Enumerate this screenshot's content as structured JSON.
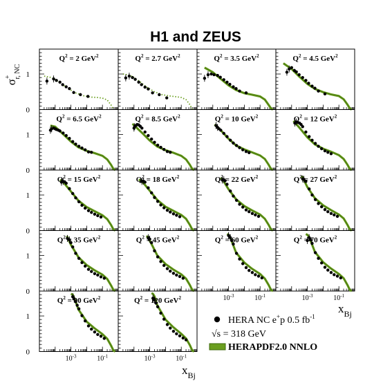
{
  "chart_data": {
    "type": "scatter",
    "title": "H1 and ZEUS",
    "ylabel_main": "σ",
    "ylabel_super": "+",
    "ylabel_sub": "r, NC",
    "xlabel_main": "x",
    "xlabel_sub": "Bj",
    "x_scale": "log",
    "xlim": [
      1e-05,
      1
    ],
    "ylim": [
      0,
      1.7
    ],
    "y_ticks": [
      "0",
      "1"
    ],
    "x_tick_labels": [
      {
        "value": 0.001,
        "base": "10",
        "exp": "-3"
      },
      {
        "value": 0.1,
        "base": "10",
        "exp": "-1"
      }
    ],
    "grid": false,
    "legend": {
      "placement": "bottom-right",
      "data_entry": {
        "main": "HERA NC e",
        "sup": "+",
        "rest": "p 0.5 fb",
        "sup2": "-1"
      },
      "sqrt_s": "√s = 318 GeV",
      "fit_entry": "HERAPDF2.0 NNLO"
    },
    "colors": {
      "fit_band": "#6a9e1f",
      "fit_edge": "#3f6b0c",
      "points": "#000000"
    },
    "panels": [
      {
        "q2": "2",
        "fit_x": [
          2e-05,
          6e-05,
          0.0002,
          0.0006,
          0.002,
          0.006,
          0.02,
          0.05,
          0.1,
          0.2,
          0.35,
          0.5
        ],
        "fit_y": [
          0.94,
          0.9,
          0.76,
          0.6,
          0.47,
          0.39,
          0.35,
          0.34,
          0.32,
          0.27,
          0.13,
          0.01
        ],
        "fit_dotted": true,
        "x": [
          3e-05,
          8e-05,
          0.00012,
          0.0002,
          0.0003,
          0.0005,
          0.0008,
          0.0015,
          0.004,
          0.012
        ],
        "y": [
          0.8,
          0.86,
          0.82,
          0.77,
          0.7,
          0.64,
          0.59,
          0.48,
          0.42,
          0.37
        ]
      },
      {
        "q2": "2.7",
        "fit_x": [
          2e-05,
          6e-05,
          0.0002,
          0.0006,
          0.002,
          0.006,
          0.02,
          0.05,
          0.1,
          0.2,
          0.35,
          0.5
        ],
        "fit_y": [
          1.0,
          0.96,
          0.81,
          0.64,
          0.5,
          0.42,
          0.38,
          0.36,
          0.34,
          0.28,
          0.14,
          0.01
        ],
        "fit_dotted": true,
        "x": [
          3e-05,
          5e-05,
          8e-05,
          0.00012,
          0.0002,
          0.0003,
          0.0005,
          0.0008,
          0.0015,
          0.004,
          0.012
        ],
        "y": [
          0.89,
          0.94,
          0.9,
          0.85,
          0.77,
          0.7,
          0.63,
          0.58,
          0.47,
          0.42,
          0.33
        ]
      },
      {
        "q2": "3.5",
        "fit_x": [
          3e-05,
          0.0001,
          0.0003,
          0.001,
          0.003,
          0.01,
          0.03,
          0.1,
          0.2,
          0.35,
          0.5,
          0.65
        ],
        "fit_y": [
          1.18,
          1.05,
          0.87,
          0.68,
          0.55,
          0.46,
          0.42,
          0.37,
          0.28,
          0.13,
          0.03,
          0.0
        ],
        "fit_dotted": false,
        "x": [
          3e-05,
          5e-05,
          8e-05,
          0.00012,
          0.0002,
          0.0003,
          0.0005,
          0.0008,
          0.0012,
          0.002,
          0.003,
          0.005,
          0.013
        ],
        "y": [
          0.88,
          0.98,
          1.0,
          0.98,
          0.96,
          0.91,
          0.84,
          0.77,
          0.71,
          0.64,
          0.59,
          0.52,
          0.47
        ]
      },
      {
        "q2": "4.5",
        "fit_x": [
          3e-05,
          0.0001,
          0.0003,
          0.001,
          0.003,
          0.01,
          0.03,
          0.1,
          0.2,
          0.35,
          0.5,
          0.65
        ],
        "fit_y": [
          1.3,
          1.14,
          0.93,
          0.72,
          0.58,
          0.49,
          0.43,
          0.38,
          0.29,
          0.14,
          0.03,
          0.0
        ],
        "fit_dotted": false,
        "x": [
          5e-05,
          7e-05,
          0.0001,
          0.00015,
          0.0002,
          0.0003,
          0.0005,
          0.0008,
          0.0012,
          0.002,
          0.003,
          0.005,
          0.013
        ],
        "y": [
          1.05,
          1.14,
          1.18,
          1.1,
          1.06,
          0.98,
          0.9,
          0.82,
          0.74,
          0.66,
          0.6,
          0.52,
          0.44
        ]
      },
      {
        "q2": "6.5",
        "fit_x": [
          5e-05,
          0.0001,
          0.0003,
          0.001,
          0.003,
          0.01,
          0.03,
          0.1,
          0.2,
          0.35,
          0.5,
          0.65
        ],
        "fit_y": [
          1.25,
          1.22,
          1.02,
          0.8,
          0.64,
          0.54,
          0.48,
          0.4,
          0.3,
          0.15,
          0.03,
          0.0
        ],
        "fit_dotted": false,
        "x": [
          5e-05,
          6e-05,
          8e-05,
          0.0001,
          0.00012,
          0.00016,
          0.0002,
          0.00032,
          0.0005,
          0.0008,
          0.0013,
          0.002,
          0.0032,
          0.005,
          0.008,
          0.013,
          0.02
        ],
        "y": [
          1.12,
          1.16,
          1.18,
          1.16,
          1.14,
          1.12,
          1.1,
          1.04,
          0.97,
          0.89,
          0.8,
          0.73,
          0.67,
          0.62,
          0.57,
          0.51,
          0.5
        ]
      },
      {
        "q2": "8.5",
        "fit_x": [
          8e-05,
          0.0001,
          0.0003,
          0.001,
          0.003,
          0.01,
          0.03,
          0.1,
          0.2,
          0.35,
          0.5,
          0.65
        ],
        "fit_y": [
          1.3,
          1.26,
          1.06,
          0.83,
          0.66,
          0.56,
          0.49,
          0.4,
          0.3,
          0.15,
          0.03,
          0.0
        ],
        "fit_dotted": false,
        "x": [
          0.0001,
          0.00011,
          0.00013,
          0.00016,
          0.0002,
          0.00025,
          0.00032,
          0.0005,
          0.0008,
          0.0013,
          0.002,
          0.0032,
          0.005,
          0.008,
          0.013,
          0.02
        ],
        "y": [
          1.18,
          1.22,
          1.25,
          1.28,
          1.27,
          1.23,
          1.18,
          1.07,
          0.97,
          0.87,
          0.78,
          0.7,
          0.64,
          0.58,
          0.52,
          0.5
        ]
      },
      {
        "q2": "10",
        "fit_x": [
          0.00013,
          0.0003,
          0.001,
          0.003,
          0.01,
          0.03,
          0.1,
          0.2,
          0.35,
          0.5,
          0.65
        ],
        "fit_y": [
          1.28,
          1.13,
          0.88,
          0.69,
          0.58,
          0.5,
          0.41,
          0.31,
          0.15,
          0.03,
          0.0
        ],
        "fit_dotted": false,
        "x": [
          0.00016,
          0.0002,
          0.00025,
          0.00032,
          0.0005,
          0.0008,
          0.0013,
          0.002,
          0.0032,
          0.005,
          0.008,
          0.013,
          0.02
        ],
        "y": [
          1.25,
          1.2,
          1.16,
          1.12,
          1.03,
          0.94,
          0.84,
          0.76,
          0.69,
          0.63,
          0.57,
          0.52,
          0.49
        ]
      },
      {
        "q2": "12",
        "fit_x": [
          0.00013,
          0.0003,
          0.001,
          0.003,
          0.01,
          0.03,
          0.1,
          0.2,
          0.35,
          0.5,
          0.65
        ],
        "fit_y": [
          1.38,
          1.2,
          0.92,
          0.72,
          0.6,
          0.52,
          0.42,
          0.31,
          0.15,
          0.03,
          0.0
        ],
        "fit_dotted": false,
        "x": [
          0.00016,
          0.0002,
          0.00025,
          0.00032,
          0.0004,
          0.0005,
          0.0008,
          0.0013,
          0.002,
          0.0032,
          0.005,
          0.008,
          0.013,
          0.02,
          0.032
        ],
        "y": [
          1.32,
          1.35,
          1.34,
          1.32,
          1.28,
          1.22,
          1.07,
          0.94,
          0.84,
          0.75,
          0.67,
          0.6,
          0.54,
          0.5,
          0.46
        ]
      },
      {
        "q2": "15",
        "fit_x": [
          0.0002,
          0.0003,
          0.001,
          0.003,
          0.01,
          0.03,
          0.1,
          0.2,
          0.35,
          0.5,
          0.65
        ],
        "fit_y": [
          1.42,
          1.38,
          1.1,
          0.84,
          0.66,
          0.55,
          0.43,
          0.32,
          0.16,
          0.03,
          0.0
        ],
        "fit_dotted": false,
        "x": [
          0.00025,
          0.00032,
          0.0004,
          0.0005,
          0.0008,
          0.0013,
          0.002,
          0.0032,
          0.005,
          0.008,
          0.013,
          0.02,
          0.032,
          0.05,
          0.08
        ],
        "y": [
          1.36,
          1.38,
          1.37,
          1.33,
          1.18,
          1.04,
          0.92,
          0.81,
          0.71,
          0.63,
          0.56,
          0.51,
          0.46,
          0.42,
          0.38
        ]
      },
      {
        "q2": "18",
        "fit_x": [
          0.0002,
          0.0003,
          0.001,
          0.003,
          0.01,
          0.03,
          0.1,
          0.2,
          0.35,
          0.5,
          0.65
        ],
        "fit_y": [
          1.43,
          1.4,
          1.12,
          0.86,
          0.67,
          0.56,
          0.44,
          0.33,
          0.16,
          0.03,
          0.0
        ],
        "fit_dotted": false,
        "x": [
          0.00032,
          0.0004,
          0.0005,
          0.0008,
          0.0013,
          0.002,
          0.0032,
          0.005,
          0.008,
          0.013,
          0.02,
          0.032,
          0.05,
          0.08
        ],
        "y": [
          1.38,
          1.39,
          1.36,
          1.2,
          1.06,
          0.93,
          0.82,
          0.72,
          0.64,
          0.57,
          0.52,
          0.47,
          0.43,
          0.39
        ]
      },
      {
        "q2": "22",
        "fit_x": [
          0.0003,
          0.0004,
          0.001,
          0.003,
          0.01,
          0.03,
          0.1,
          0.2,
          0.35,
          0.5,
          0.65
        ],
        "fit_y": [
          1.47,
          1.45,
          1.16,
          0.88,
          0.69,
          0.57,
          0.45,
          0.33,
          0.16,
          0.03,
          0.0
        ],
        "fit_dotted": false,
        "x": [
          0.0004,
          0.0005,
          0.0006,
          0.0008,
          0.0013,
          0.002,
          0.0032,
          0.005,
          0.008,
          0.013,
          0.02,
          0.032,
          0.05,
          0.08
        ],
        "y": [
          1.42,
          1.43,
          1.4,
          1.3,
          1.11,
          0.97,
          0.85,
          0.74,
          0.66,
          0.58,
          0.53,
          0.48,
          0.44,
          0.4
        ]
      },
      {
        "q2": "27",
        "fit_x": [
          0.0004,
          0.0005,
          0.001,
          0.003,
          0.01,
          0.03,
          0.1,
          0.2,
          0.35,
          0.5,
          0.65
        ],
        "fit_y": [
          1.52,
          1.5,
          1.22,
          0.91,
          0.71,
          0.58,
          0.45,
          0.34,
          0.16,
          0.03,
          0.0
        ],
        "fit_dotted": false,
        "x": [
          0.0005,
          0.0006,
          0.0008,
          0.0013,
          0.002,
          0.0032,
          0.005,
          0.008,
          0.013,
          0.02,
          0.032,
          0.05,
          0.08
        ],
        "y": [
          1.45,
          1.44,
          1.38,
          1.17,
          1.0,
          0.87,
          0.76,
          0.67,
          0.59,
          0.53,
          0.48,
          0.44,
          0.4
        ]
      },
      {
        "q2": "35",
        "fit_x": [
          0.0005,
          0.0006,
          0.001,
          0.003,
          0.01,
          0.03,
          0.1,
          0.2,
          0.35,
          0.5,
          0.65
        ],
        "fit_y": [
          1.52,
          1.52,
          1.3,
          0.95,
          0.73,
          0.59,
          0.46,
          0.34,
          0.16,
          0.03,
          0.0
        ],
        "fit_dotted": false,
        "x": [
          0.0006,
          0.0008,
          0.001,
          0.0013,
          0.002,
          0.0032,
          0.005,
          0.008,
          0.013,
          0.02,
          0.032,
          0.05,
          0.08,
          0.13
        ],
        "y": [
          1.48,
          1.44,
          1.36,
          1.24,
          1.06,
          0.92,
          0.8,
          0.7,
          0.61,
          0.55,
          0.49,
          0.45,
          0.4,
          0.36
        ]
      },
      {
        "q2": "45",
        "fit_x": [
          0.0006,
          0.0008,
          0.001,
          0.003,
          0.01,
          0.03,
          0.1,
          0.2,
          0.35,
          0.5,
          0.65
        ],
        "fit_y": [
          1.54,
          1.52,
          1.42,
          1.0,
          0.76,
          0.61,
          0.47,
          0.35,
          0.17,
          0.03,
          0.0
        ],
        "fit_dotted": false,
        "x": [
          0.0008,
          0.001,
          0.0013,
          0.002,
          0.0032,
          0.005,
          0.008,
          0.013,
          0.02,
          0.032,
          0.05,
          0.08,
          0.13
        ],
        "y": [
          1.5,
          1.46,
          1.36,
          1.13,
          0.96,
          0.83,
          0.72,
          0.63,
          0.56,
          0.5,
          0.45,
          0.41,
          0.36
        ]
      },
      {
        "q2": "60",
        "fit_x": [
          0.0008,
          0.001,
          0.0013,
          0.003,
          0.01,
          0.03,
          0.1,
          0.2,
          0.35,
          0.5,
          0.65
        ],
        "fit_y": [
          1.6,
          1.58,
          1.5,
          1.08,
          0.8,
          0.63,
          0.48,
          0.35,
          0.17,
          0.03,
          0.0
        ],
        "fit_dotted": false,
        "x": [
          0.001,
          0.0013,
          0.0016,
          0.002,
          0.0032,
          0.005,
          0.008,
          0.013,
          0.02,
          0.032,
          0.05,
          0.08,
          0.13
        ],
        "y": [
          1.56,
          1.5,
          1.42,
          1.32,
          1.06,
          0.9,
          0.77,
          0.66,
          0.58,
          0.52,
          0.46,
          0.42,
          0.37
        ]
      },
      {
        "q2": "70",
        "fit_x": [
          0.0008,
          0.001,
          0.0013,
          0.003,
          0.01,
          0.03,
          0.1,
          0.2,
          0.35,
          0.5,
          0.65
        ],
        "fit_y": [
          1.6,
          1.58,
          1.52,
          1.1,
          0.81,
          0.64,
          0.48,
          0.36,
          0.17,
          0.03,
          0.0
        ],
        "fit_dotted": false,
        "x": [
          0.001,
          0.0013,
          0.0016,
          0.002,
          0.0032,
          0.005,
          0.008,
          0.013,
          0.02,
          0.032,
          0.05,
          0.08,
          0.13
        ],
        "y": [
          1.42,
          1.5,
          1.44,
          1.34,
          1.08,
          0.92,
          0.79,
          0.67,
          0.59,
          0.52,
          0.46,
          0.42,
          0.37
        ]
      },
      {
        "q2": "90",
        "fit_x": [
          0.001,
          0.0013,
          0.002,
          0.003,
          0.01,
          0.03,
          0.1,
          0.2,
          0.35,
          0.5,
          0.65
        ],
        "fit_y": [
          1.62,
          1.6,
          1.4,
          1.18,
          0.84,
          0.66,
          0.49,
          0.36,
          0.17,
          0.03,
          0.0
        ],
        "fit_dotted": false,
        "x": [
          0.0013,
          0.0016,
          0.002,
          0.0025,
          0.0032,
          0.005,
          0.008,
          0.013,
          0.02,
          0.032,
          0.05,
          0.08,
          0.13
        ],
        "y": [
          1.54,
          1.48,
          1.4,
          1.3,
          1.2,
          1.01,
          0.86,
          0.72,
          0.63,
          0.55,
          0.48,
          0.43,
          0.37
        ]
      },
      {
        "q2": "120",
        "fit_x": [
          0.0013,
          0.0016,
          0.002,
          0.003,
          0.01,
          0.03,
          0.1,
          0.2,
          0.35,
          0.5,
          0.65
        ],
        "fit_y": [
          1.64,
          1.62,
          1.55,
          1.3,
          0.9,
          0.69,
          0.5,
          0.37,
          0.18,
          0.03,
          0.0
        ],
        "fit_dotted": false,
        "x": [
          0.0016,
          0.002,
          0.0025,
          0.0032,
          0.005,
          0.008,
          0.013,
          0.02,
          0.032,
          0.05,
          0.08,
          0.13,
          0.2
        ],
        "y": [
          1.5,
          1.45,
          1.36,
          1.26,
          1.08,
          0.91,
          0.76,
          0.66,
          0.57,
          0.5,
          0.44,
          0.38,
          0.33
        ]
      }
    ]
  }
}
